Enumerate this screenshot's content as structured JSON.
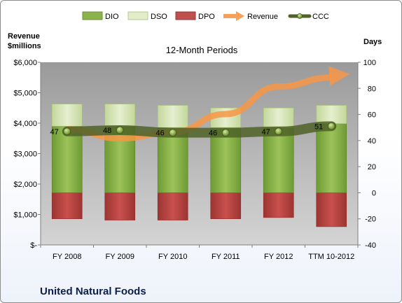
{
  "chart_data": {
    "type": "bar",
    "title": "12-Month Periods",
    "company": "United Natural Foods",
    "categories": [
      "FY 2008",
      "FY 2009",
      "FY 2010",
      "FY 2011",
      "FY 2012",
      "TTM 10-2012"
    ],
    "left_axis": {
      "title_line1": "Revenue",
      "title_line2": "$millions",
      "ylim": [
        0,
        6000
      ],
      "ticks": [
        0,
        1000,
        2000,
        3000,
        4000,
        5000,
        6000
      ],
      "tick_labels": [
        "$-",
        "$1,000",
        "$2,000",
        "$3,000",
        "$4,000",
        "$5,000",
        "$6,000"
      ]
    },
    "right_axis": {
      "title": "Days",
      "ylim": [
        -40,
        100
      ],
      "ticks": [
        -40,
        -20,
        0,
        20,
        40,
        60,
        80,
        100
      ],
      "tick_labels": [
        "-40",
        "-20",
        "0",
        "20",
        "40",
        "60",
        "80",
        "100"
      ]
    },
    "series": [
      {
        "name": "DIO",
        "axis": "right",
        "values": [
          51,
          51,
          50,
          50,
          50,
          53
        ]
      },
      {
        "name": "DSO",
        "axis": "right",
        "values": [
          17,
          17,
          17,
          15,
          15,
          14
        ]
      },
      {
        "name": "DPO",
        "axis": "right",
        "values": [
          -20,
          -21,
          -21,
          -20,
          -19,
          -26
        ]
      },
      {
        "name": "Revenue",
        "axis": "left",
        "values": [
          3800,
          3500,
          3700,
          4300,
          5200,
          5500
        ]
      },
      {
        "name": "CCC",
        "axis": "right",
        "values": [
          47,
          48,
          46,
          46,
          47,
          51
        ]
      }
    ],
    "ccc_labels": [
      "47",
      "48",
      "46",
      "46",
      "47",
      "51"
    ],
    "colors": {
      "dio": "#8ab34a",
      "dso": "#d7e4b6",
      "dpo": "#c0504d",
      "revenue": "#f79646",
      "ccc": "#4f6228",
      "plot_bg": "#b8b8b8"
    },
    "grid": false,
    "legend_position": "top"
  }
}
